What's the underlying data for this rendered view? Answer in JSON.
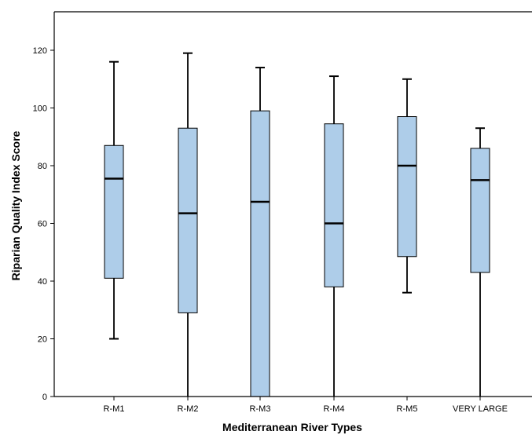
{
  "chart_data": {
    "type": "boxplot",
    "title": "",
    "xlabel": "Mediterranean River Types",
    "ylabel": "Riparian Quality Index Score",
    "ylim": [
      0,
      134
    ],
    "yticks": [
      0,
      20,
      40,
      60,
      80,
      100,
      120
    ],
    "grid": false,
    "categories": [
      "R-M1",
      "R-M2",
      "R-M3",
      "R-M4",
      "R-M5",
      "VERY LARGE"
    ],
    "boxes": [
      {
        "category": "R-M1",
        "min": 20,
        "q1": 41,
        "median": 75.5,
        "q3": 87,
        "max": 116
      },
      {
        "category": "R-M2",
        "min": 0,
        "q1": 29,
        "median": 63.5,
        "q3": 93,
        "max": 119
      },
      {
        "category": "R-M3",
        "min": 0,
        "q1": 0,
        "median": 67.5,
        "q3": 99,
        "max": 114
      },
      {
        "category": "R-M4",
        "min": 0,
        "q1": 38,
        "median": 60,
        "q3": 94.5,
        "max": 111
      },
      {
        "category": "R-M5",
        "min": 36,
        "q1": 48.5,
        "median": 80,
        "q3": 97,
        "max": 110
      },
      {
        "category": "VERY LARGE",
        "min": 0,
        "q1": 43,
        "median": 75,
        "q3": 86,
        "max": 93
      }
    ],
    "colors": {
      "box_fill": "#aecde9",
      "stroke": "#000000"
    }
  }
}
